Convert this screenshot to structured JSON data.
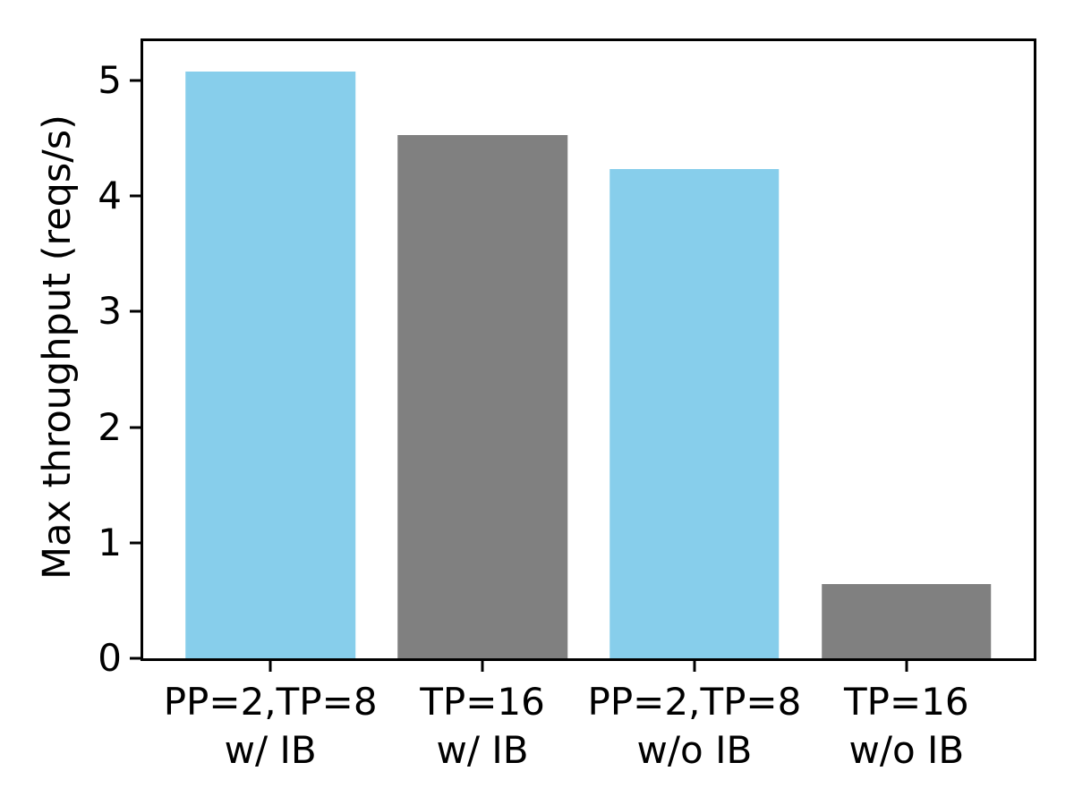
{
  "figure": {
    "background": "#ffffff",
    "axis_color": "#000000",
    "text_color": "#000000"
  },
  "chart_data": {
    "type": "bar",
    "title": "",
    "xlabel": "",
    "ylabel": "Max throughput (reqs/s)",
    "categories": [
      "PP=2,TP=8\nw/ IB",
      "TP=16\nw/ IB",
      "PP=2,TP=8\nw/o IB",
      "TP=16\nw/o IB"
    ],
    "values": [
      5.08,
      4.53,
      4.23,
      0.64
    ],
    "bar_colors": [
      "#87ceeb",
      "#808080",
      "#87ceeb",
      "#808080"
    ],
    "yticks": [
      0,
      1,
      2,
      3,
      4,
      5
    ],
    "ylim": [
      0,
      5.34
    ],
    "x_margin_units": 0.6,
    "bar_width_units": 0.8,
    "grid": false,
    "legend": "none"
  }
}
